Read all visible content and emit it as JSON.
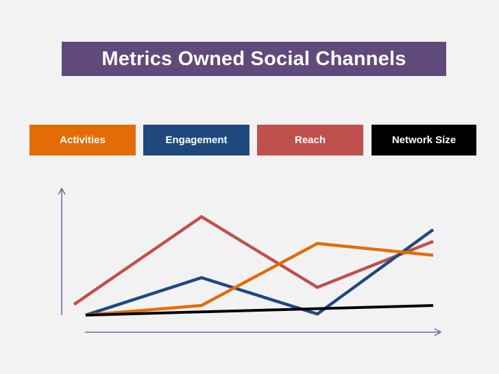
{
  "title": "Metrics Owned Social Channels",
  "colors": {
    "background": "#f2f2f2",
    "title_bg": "#604a7b",
    "axis": "#7a5fa0"
  },
  "chart_data": {
    "type": "line",
    "title": "Metrics Owned Social Channels",
    "xlabel": "",
    "ylabel": "",
    "x": [
      1,
      2,
      3,
      4
    ],
    "ylim": [
      0,
      10
    ],
    "grid": false,
    "legend_position": "top",
    "series": [
      {
        "name": "Activities",
        "color": "#e36c09",
        "x": [
          1,
          2,
          3,
          4
        ],
        "values": [
          0.0,
          0.9,
          6.7,
          5.6
        ]
      },
      {
        "name": "Engagement",
        "color": "#1f497d",
        "x": [
          1,
          2,
          3,
          4
        ],
        "values": [
          0.0,
          3.5,
          0.1,
          8.0
        ]
      },
      {
        "name": "Reach",
        "color": "#c0504d",
        "x": [
          0.9,
          2,
          3,
          4
        ],
        "values": [
          1.0,
          9.2,
          2.6,
          6.9
        ]
      },
      {
        "name": "Network Size",
        "color": "#000000",
        "x": [
          1,
          4
        ],
        "values": [
          0.0,
          0.9
        ]
      }
    ]
  }
}
